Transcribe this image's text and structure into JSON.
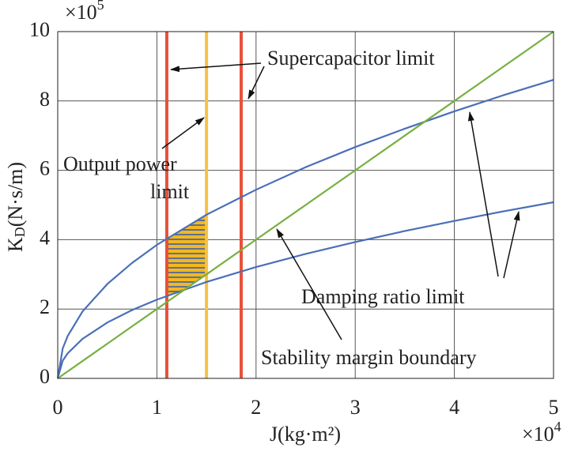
{
  "chart_data": {
    "type": "line",
    "xlabel": "J(kg·m²)",
    "ylabel": {
      "main": "K",
      "sub": "D",
      "rest": "(N·s/m)"
    },
    "x_multiplier": {
      "base": "×10",
      "exp": "4"
    },
    "y_multiplier": {
      "base": "×10",
      "exp": "5"
    },
    "x": [
      0,
      0.05,
      0.1,
      0.25,
      0.5,
      0.75,
      1,
      1.5,
      2,
      2.5,
      3,
      3.5,
      4,
      4.5,
      5
    ],
    "series": [
      {
        "color": "#4a6fb8",
        "values": [
          0,
          0.86,
          1.22,
          1.93,
          2.72,
          3.33,
          3.85,
          4.72,
          5.44,
          6.09,
          6.67,
          7.2,
          7.7,
          8.17,
          8.61
        ]
      },
      {
        "color": "#4a6fb8",
        "values": [
          0,
          0.51,
          0.72,
          1.14,
          1.61,
          1.97,
          2.27,
          2.78,
          3.21,
          3.59,
          3.93,
          4.25,
          4.54,
          4.82,
          5.08
        ]
      },
      {
        "color": "#77b040",
        "values": [
          0,
          0.1,
          0.2,
          0.5,
          1,
          1.5,
          2,
          3,
          4,
          5,
          6,
          7,
          8,
          9,
          10
        ]
      }
    ],
    "vlines": [
      {
        "x": 1.1,
        "color": "#e8503a"
      },
      {
        "x": 1.5,
        "color": "#f6c244"
      },
      {
        "x": 1.85,
        "color": "#e8503a"
      }
    ],
    "region_color": "#f3b81f",
    "annotations": [
      "Supercapacitor limit",
      "Output power",
      "limit",
      "Damping ratio limit",
      "Stability margin boundary"
    ],
    "xlim": [
      0,
      5
    ],
    "ylim": [
      0,
      10
    ],
    "xticks": [
      0,
      1,
      2,
      3,
      4,
      5
    ],
    "yticks": [
      0,
      2,
      4,
      6,
      8,
      10
    ],
    "grid": true
  }
}
